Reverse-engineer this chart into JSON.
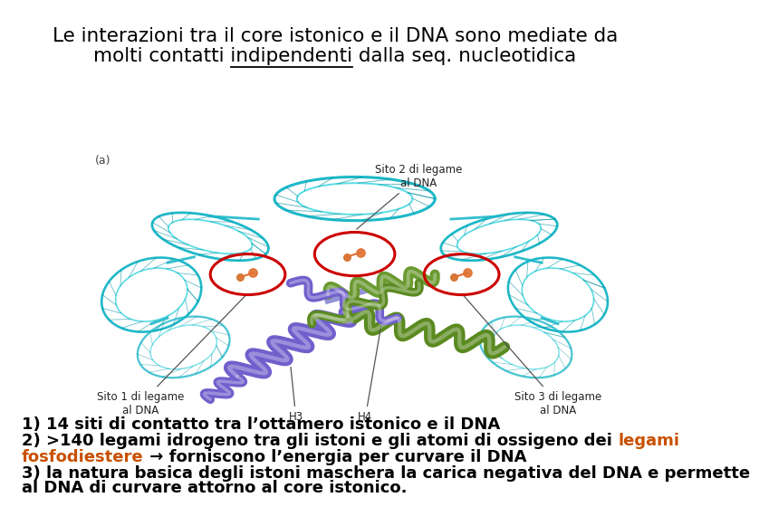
{
  "title_line1": "Le interazioni tra il core istonico e il DNA sono mediate da",
  "title_line2": "molti contatti indipendenti dalla seq. nucleotidica",
  "title_underline_word": "indipendenti",
  "title_fontsize": 15.5,
  "bg_color": "#ffffff",
  "text_color": "#000000",
  "orange_color": "#c85000",
  "body_parts": [
    [
      {
        "t": "1) 14 siti di contatto tra l’ottamero istonico e il DNA",
        "c": "#000000"
      }
    ],
    [
      {
        "t": "2) >140 legami idrogeno tra gli istoni e gli atomi di ossigeno dei ",
        "c": "#000000"
      },
      {
        "t": "legami",
        "c": "#c85000"
      }
    ],
    [
      {
        "t": "fosfodiestere",
        "c": "#c85000"
      },
      {
        "t": " → forniscono l’energia per curvare il DNA",
        "c": "#000000"
      }
    ],
    [
      {
        "t": "3) la natura basica degli istoni maschera la carica negativa del DNA e permette",
        "c": "#000000"
      }
    ],
    [
      {
        "t": "al DNA di curvare attorno al core istonico.",
        "c": "#000000"
      }
    ]
  ],
  "body_fontsize": 13,
  "body_fontweight": "bold",
  "img_label_a": "(a)",
  "img_label_sito2": "Sito 2 di legame\nal DNA",
  "img_label_sito1": "Sito 1 di legame\nal DNA",
  "img_label_sito3": "Sito 3 di legame\nal DNA",
  "img_label_h3": "H3",
  "img_label_h4": "H4",
  "teal1": "#1eb8c8",
  "teal2": "#3dd6e0",
  "teal3": "#0090a0",
  "purple": "#6a5acd",
  "green": "#5a8a20",
  "red_circle": "#cc0000",
  "orange_mol": "#e07030"
}
